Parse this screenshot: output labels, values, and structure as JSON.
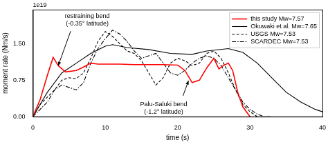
{
  "chart_data": {
    "type": "line",
    "x_label": "time (s)",
    "y_label": "moment rate (Nm/s)",
    "xlim": [
      0,
      40
    ],
    "xticks": [
      0,
      10,
      20,
      30,
      40
    ],
    "ylim": [
      0,
      2.2
    ],
    "yticks": [
      {
        "value": 0,
        "label": "0.00"
      },
      {
        "value": 0.75,
        "label": "0.75"
      },
      {
        "value": 1.5,
        "label": "1.50"
      }
    ],
    "grid": false,
    "legend": "upper right",
    "annotations": [
      {
        "text": "1e19"
      },
      {
        "text": "restraining bend\n(-0.35° latitude)",
        "x": 3.5,
        "y": 1.05
      },
      {
        "text": "Palu-Saluki bend\n(-1.2° latitude)",
        "x": 21.5,
        "y": 0.74
      }
    ],
    "series": [
      {
        "name": "this study Mw=7.57",
        "color": "#ff0000",
        "line_style": "solid",
        "x": [
          0,
          1,
          2,
          2.8,
          3.5,
          4.5,
          6,
          7,
          8,
          9,
          10,
          12,
          14,
          16,
          18,
          20,
          21,
          22,
          23,
          24,
          25,
          25.7,
          26.3,
          27,
          27.6,
          28.3,
          29,
          30
        ],
        "values": [
          0,
          0.35,
          0.85,
          1.22,
          1.05,
          0.92,
          0.95,
          1.02,
          1.1,
          1.08,
          1.08,
          1.08,
          1.07,
          1.07,
          1.07,
          1.06,
          0.95,
          0.7,
          0.75,
          1.0,
          1.2,
          0.98,
          1.05,
          1.1,
          0.95,
          0.5,
          0.2,
          0
        ]
      },
      {
        "name": "Okuwaki et al. Mw=7.65",
        "color": "#000000",
        "line_style": "solid",
        "x": [
          0,
          2,
          4,
          6,
          8,
          10,
          11,
          13,
          16,
          19,
          22,
          24,
          27,
          29,
          31,
          33,
          35,
          37,
          39,
          40
        ],
        "values": [
          0,
          0.5,
          0.9,
          1.1,
          1.3,
          1.45,
          1.48,
          1.42,
          1.38,
          1.3,
          1.28,
          1.35,
          1.4,
          1.32,
          1.1,
          0.8,
          0.5,
          0.3,
          0.15,
          0.1
        ]
      },
      {
        "name": "USGS Mw=7.53",
        "color": "#000000",
        "line_style": "dashed",
        "x": [
          0,
          1,
          2,
          3,
          4,
          5,
          6,
          7,
          8,
          9,
          10,
          11,
          12,
          13,
          14,
          15,
          16,
          17,
          18,
          19,
          20,
          21,
          22,
          23,
          24,
          25,
          26,
          27,
          28,
          29,
          30,
          31
        ],
        "values": [
          0,
          0.25,
          0.4,
          0.55,
          0.75,
          0.8,
          0.78,
          0.9,
          1.2,
          1.55,
          1.75,
          1.65,
          1.5,
          1.35,
          1.3,
          1.15,
          0.9,
          0.65,
          0.8,
          1.1,
          1.2,
          1.15,
          1.05,
          1.1,
          1.3,
          1.35,
          1.2,
          0.9,
          0.55,
          0.25,
          0.1,
          0
        ]
      },
      {
        "name": "SCARDEC Mw=7.53",
        "color": "#000000",
        "line_style": "dashdot",
        "x": [
          0,
          2,
          3,
          4,
          5,
          6,
          7,
          8,
          9,
          10,
          11,
          12,
          13,
          14,
          15,
          16,
          17,
          18,
          19,
          20,
          21,
          22,
          23,
          24,
          25,
          26,
          27,
          28,
          29,
          30,
          31,
          32,
          33
        ],
        "values": [
          0,
          0.3,
          0.55,
          0.65,
          0.6,
          0.55,
          0.7,
          1.1,
          1.4,
          1.6,
          1.78,
          1.7,
          1.55,
          1.35,
          1.2,
          1.25,
          1.3,
          1.1,
          0.9,
          0.85,
          0.95,
          1.1,
          1.2,
          1.25,
          1.2,
          1.05,
          0.8,
          0.55,
          0.3,
          0.15,
          0.05,
          0,
          0
        ]
      }
    ]
  }
}
